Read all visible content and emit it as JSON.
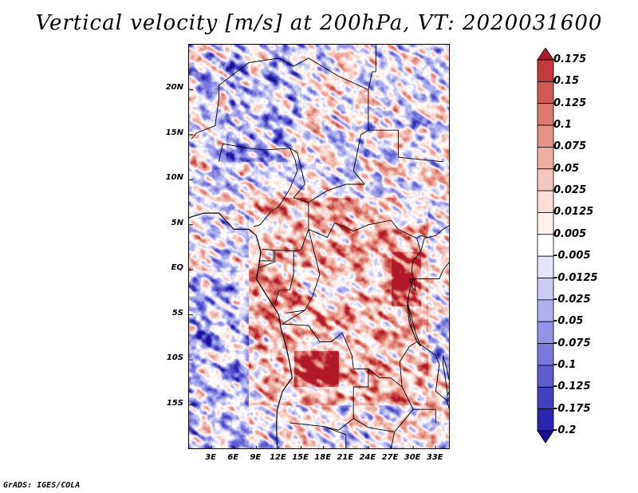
{
  "title": "Vertical velocity [m/s] at 200hPa, VT: 2020031600",
  "credit": "GrADS: IGES/COLA",
  "chart_data": {
    "type": "heatmap",
    "variable": "Vertical velocity",
    "units": "m/s",
    "level": "200hPa",
    "valid_time": "2020031600",
    "lon_range": [
      0,
      35
    ],
    "lat_range": [
      -20,
      25
    ],
    "x_ticks": [
      {
        "lon": 3,
        "label": "3E"
      },
      {
        "lon": 6,
        "label": "6E"
      },
      {
        "lon": 9,
        "label": "9E"
      },
      {
        "lon": 12,
        "label": "12E"
      },
      {
        "lon": 15,
        "label": "15E"
      },
      {
        "lon": 18,
        "label": "18E"
      },
      {
        "lon": 21,
        "label": "21E"
      },
      {
        "lon": 24,
        "label": "24E"
      },
      {
        "lon": 27,
        "label": "27E"
      },
      {
        "lon": 30,
        "label": "30E"
      },
      {
        "lon": 33,
        "label": "33E"
      }
    ],
    "y_ticks": [
      {
        "lat": 20,
        "label": "20N"
      },
      {
        "lat": 15,
        "label": "15N"
      },
      {
        "lat": 10,
        "label": "10N"
      },
      {
        "lat": 5,
        "label": "5N"
      },
      {
        "lat": 0,
        "label": "EQ"
      },
      {
        "lat": -5,
        "label": "5S"
      },
      {
        "lat": -10,
        "label": "10S"
      },
      {
        "lat": -15,
        "label": "15S"
      }
    ],
    "colorbar": {
      "levels": [
        "0.175",
        "0.15",
        "0.125",
        "0.1",
        "0.075",
        "0.05",
        "0.025",
        "0.0125",
        "0.005",
        "-0.005",
        "-0.0125",
        "-0.025",
        "-0.05",
        "-0.075",
        "-0.1",
        "-0.125",
        "-0.175",
        "-0.2"
      ],
      "colors": [
        "#b2182b",
        "#c33a3e",
        "#d05a56",
        "#dc7a6e",
        "#e69488",
        "#eeaea2",
        "#f5c8bf",
        "#fadfd8",
        "#fff2ee",
        "#ffffff",
        "#e4e4fb",
        "#cbcbf5",
        "#b0b0ee",
        "#9494e6",
        "#7a78dc",
        "#5e5ccf",
        "#4340c0",
        "#2a25ad",
        "#1a0e9a"
      ]
    }
  }
}
